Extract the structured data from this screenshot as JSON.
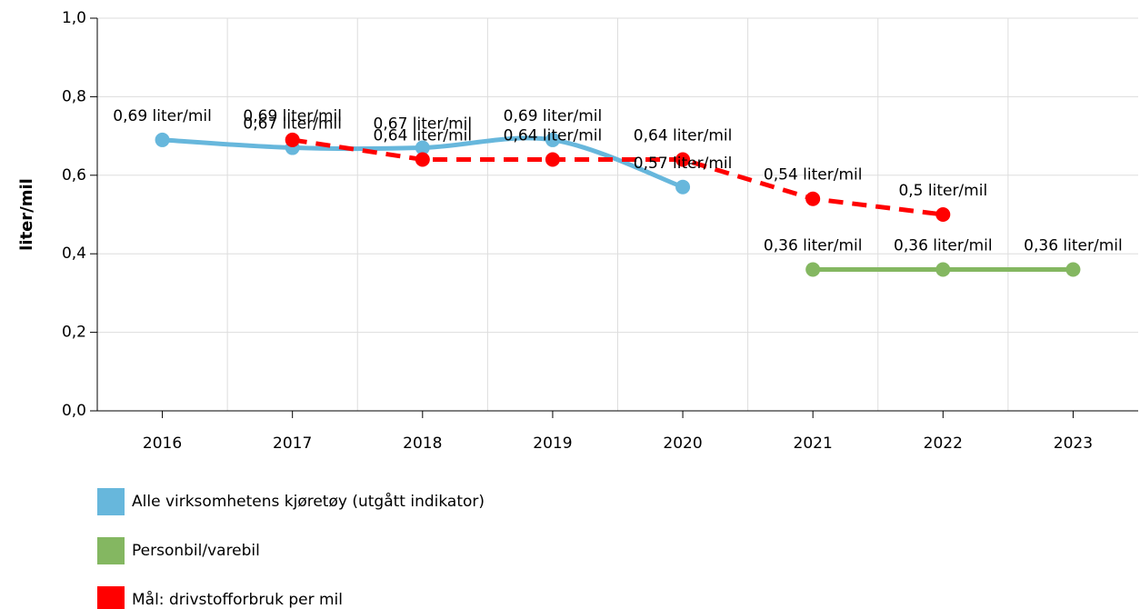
{
  "chart_data": {
    "type": "line",
    "y_label": "liter/mil",
    "categories": [
      "2016",
      "2017",
      "2018",
      "2019",
      "2020",
      "2021",
      "2022",
      "2023"
    ],
    "series": [
      {
        "name": "Alle virksomhetens kjøretøy (utgått indikator)",
        "color": "#67b7dc",
        "dashed": false,
        "smooth": true,
        "values": [
          0.69,
          0.67,
          0.67,
          0.69,
          0.57,
          null,
          null,
          null
        ],
        "value_labels": [
          "0,69 liter/mil",
          "0,67 liter/mil",
          "0,67 liter/mil",
          "0,69 liter/mil",
          "0,57 liter/mil",
          null,
          null,
          null
        ]
      },
      {
        "name": "Personbil/varebil",
        "color": "#84b761",
        "dashed": false,
        "smooth": false,
        "values": [
          null,
          null,
          null,
          null,
          null,
          0.36,
          0.36,
          0.36
        ],
        "value_labels": [
          null,
          null,
          null,
          null,
          null,
          "0,36 liter/mil",
          "0,36 liter/mil",
          "0,36 liter/mil"
        ]
      },
      {
        "name": "Mål: drivstofforbruk per mil",
        "color": "#ff0000",
        "dashed": true,
        "smooth": false,
        "values": [
          null,
          0.69,
          0.64,
          0.64,
          0.64,
          0.54,
          0.5,
          null
        ],
        "value_labels": [
          null,
          "0,69 liter/mil",
          "0,64 liter/mil",
          "0,64 liter/mil",
          "0,64 liter/mil",
          "0,54 liter/mil",
          "0,5 liter/mil",
          null
        ]
      }
    ],
    "ylim": [
      0,
      1
    ],
    "yticks": [
      {
        "value": 0,
        "label": "0,0"
      },
      {
        "value": 0.2,
        "label": "0,2"
      },
      {
        "value": 0.4,
        "label": "0,4"
      },
      {
        "value": 0.6,
        "label": "0,6"
      },
      {
        "value": 0.8,
        "label": "0,8"
      },
      {
        "value": 1,
        "label": "1,0"
      }
    ],
    "grid": true,
    "legend": "bottom"
  }
}
